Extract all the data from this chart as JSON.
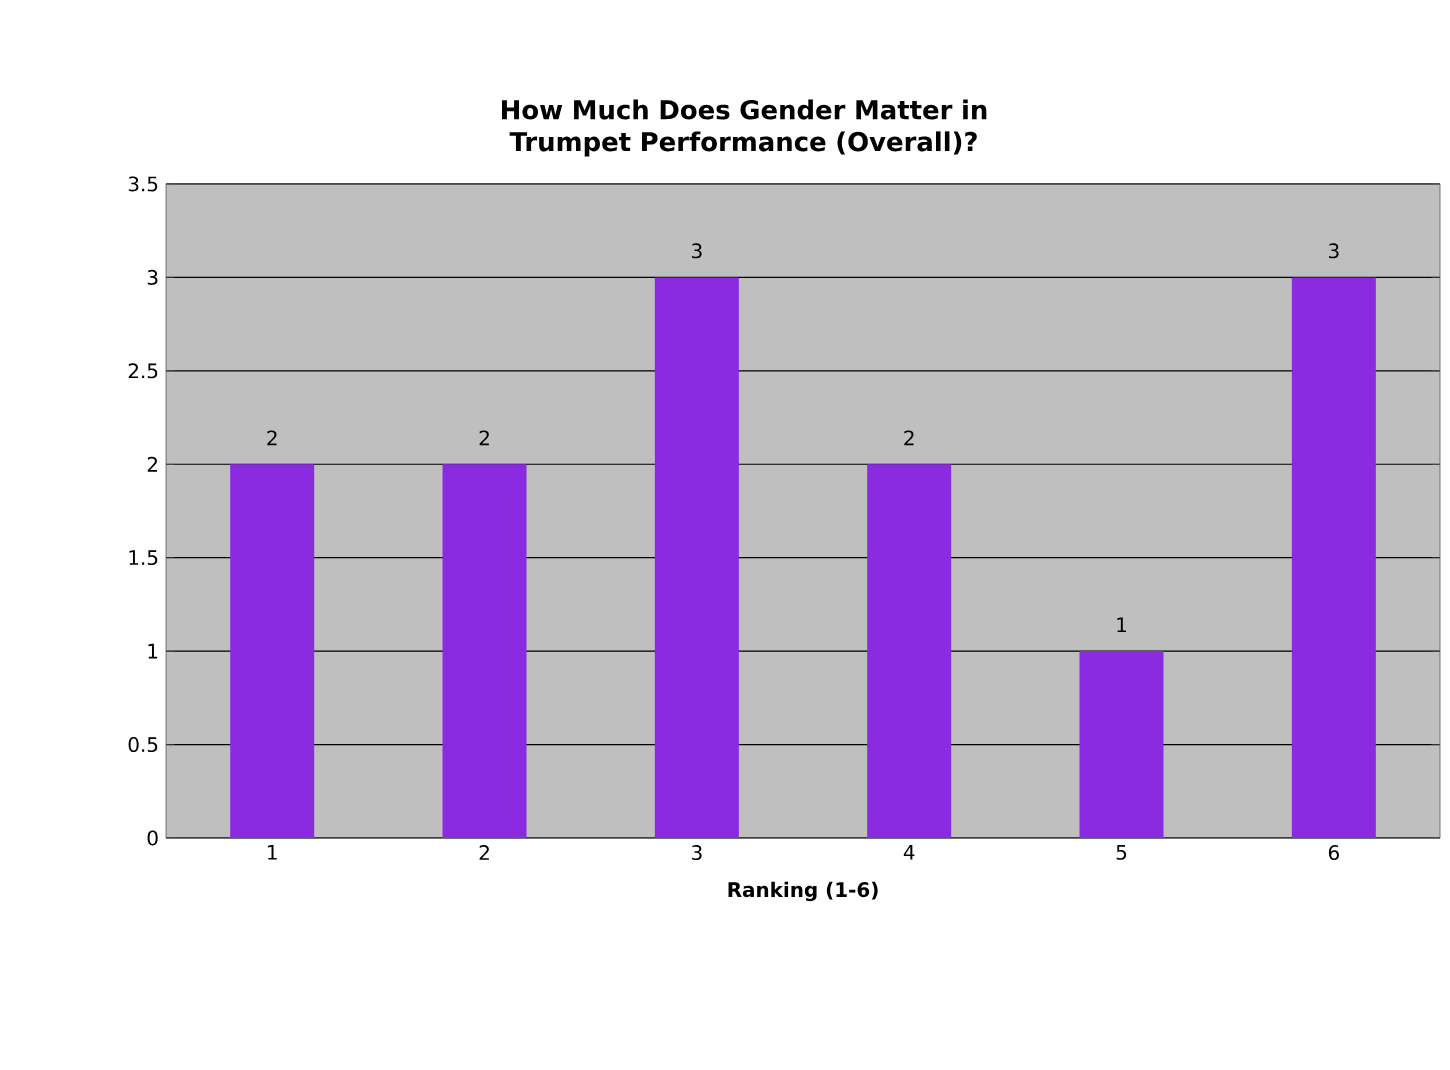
{
  "chart_data": {
    "type": "bar",
    "title": "How Much Does Gender Matter in Trumpet Performance (Overall)?",
    "xlabel": "Ranking (1-6)",
    "categories": [
      "1",
      "2",
      "3",
      "4",
      "5",
      "6"
    ],
    "values": [
      2,
      2,
      3,
      2,
      1,
      3
    ],
    "color": "#8a2be2",
    "ylim": [
      0,
      3.5
    ],
    "yticks": [
      0,
      0.5,
      1,
      1.5,
      2,
      2.5,
      3,
      3.5
    ],
    "grid": "y",
    "data_labels": true
  }
}
